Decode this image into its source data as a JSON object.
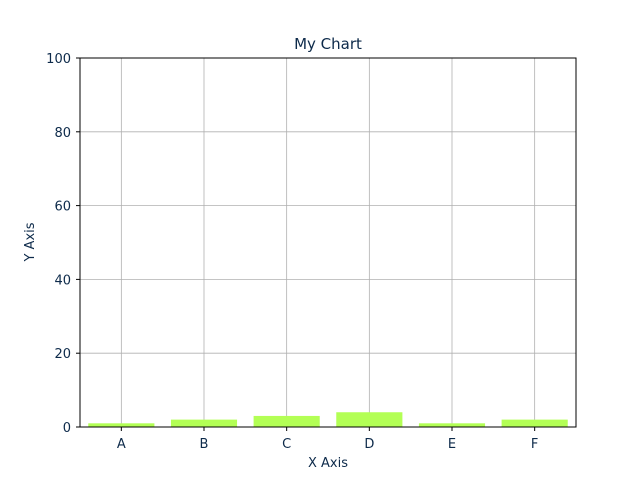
{
  "chart_data": {
    "type": "bar",
    "title": "My Chart",
    "xlabel": "X Axis",
    "ylabel": "Y Axis",
    "categories": [
      "A",
      "B",
      "C",
      "D",
      "E",
      "F"
    ],
    "values": [
      1,
      2,
      3,
      4,
      1,
      2
    ],
    "ylim": [
      0,
      100
    ],
    "yticks": [
      "0",
      "20",
      "40",
      "60",
      "80",
      "100"
    ],
    "grid": true,
    "colors": {
      "bar": "#b3ff55",
      "text": "#0d2a4a",
      "grid": "#b0b0b0",
      "axis": "#000000"
    }
  }
}
